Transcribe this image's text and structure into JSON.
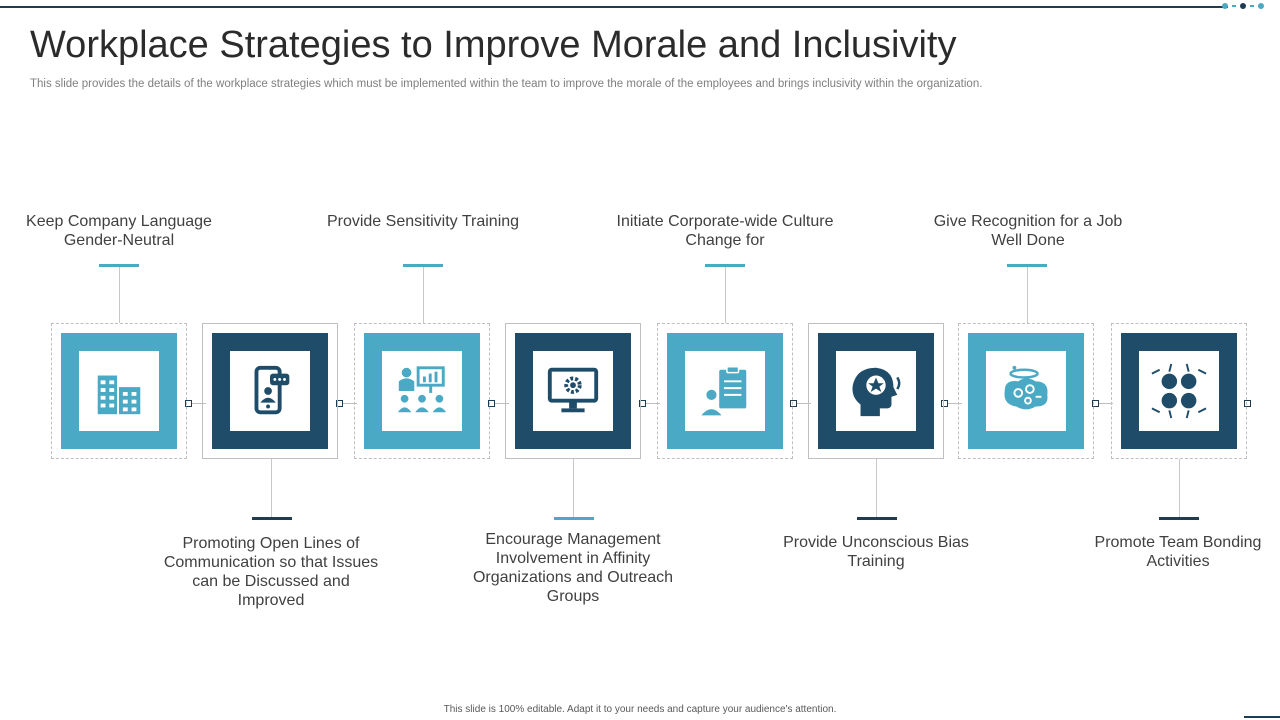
{
  "title": "Workplace Strategies to Improve Morale and Inclusivity",
  "subtitle": "This slide provides the details of the workplace strategies which must be implemented within the team to improve the morale of the employees and brings inclusivity within the organization.",
  "strategies": [
    {
      "label": "Keep Company Language Gender-Neutral",
      "icon": "office-building-icon",
      "color": "#4aa9c4"
    },
    {
      "label": "Promoting Open Lines of Communication so that Issues can be Discussed and Improved",
      "icon": "mobile-chat-icon",
      "color": "#1f4d69"
    },
    {
      "label": "Provide Sensitivity Training",
      "icon": "presentation-training-icon",
      "color": "#4aa9c4"
    },
    {
      "label": "Encourage Management Involvement in Affinity Organizations and Outreach Groups",
      "icon": "monitor-gear-icon",
      "color": "#1f4d69"
    },
    {
      "label": "Initiate Corporate-wide Culture Change for",
      "icon": "person-clipboard-icon",
      "color": "#4aa9c4"
    },
    {
      "label": "Provide Unconscious Bias Training",
      "icon": "head-star-icon",
      "color": "#1f4d69"
    },
    {
      "label": "Give Recognition for a Job Well Done",
      "icon": "brain-halo-icon",
      "color": "#4aa9c4"
    },
    {
      "label": "Promote Team Bonding Activities",
      "icon": "network-nodes-icon",
      "color": "#1f4d69"
    }
  ],
  "footer": "This slide is 100% editable. Adapt it to your needs and capture your audience's attention."
}
